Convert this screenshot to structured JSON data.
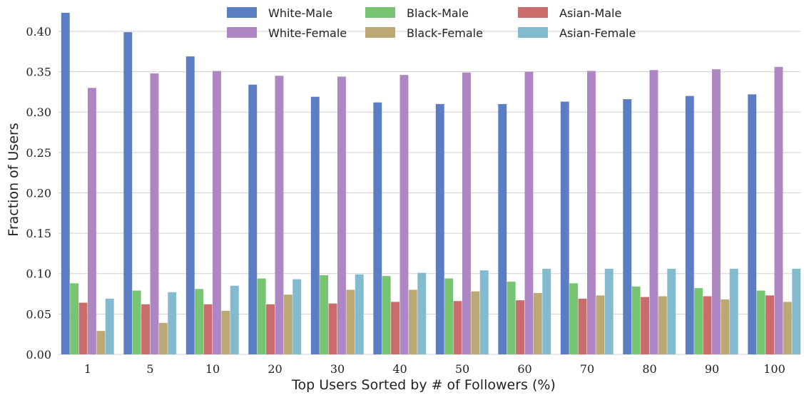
{
  "chart_data": {
    "type": "bar",
    "title": "",
    "xlabel": "Top Users Sorted by # of Followers (%)",
    "ylabel": "Fraction of Users",
    "ylim": [
      0,
      0.43
    ],
    "yticks": [
      "0.00",
      "0.05",
      "0.10",
      "0.15",
      "0.20",
      "0.25",
      "0.30",
      "0.35",
      "0.40"
    ],
    "grid": true,
    "legend_position": "top-center",
    "categories": [
      "1",
      "5",
      "10",
      "20",
      "30",
      "40",
      "50",
      "60",
      "70",
      "80",
      "90",
      "100"
    ],
    "series": [
      {
        "name": "White-Male",
        "color": "#5A7DC4",
        "values": [
          0.423,
          0.399,
          0.369,
          0.334,
          0.319,
          0.312,
          0.31,
          0.31,
          0.313,
          0.316,
          0.32,
          0.322
        ]
      },
      {
        "name": "Black-Male",
        "color": "#77C472",
        "values": [
          0.088,
          0.079,
          0.081,
          0.094,
          0.098,
          0.097,
          0.094,
          0.09,
          0.088,
          0.084,
          0.082,
          0.079
        ]
      },
      {
        "name": "Asian-Male",
        "color": "#CB6C6C",
        "values": [
          0.064,
          0.062,
          0.062,
          0.062,
          0.063,
          0.065,
          0.066,
          0.067,
          0.069,
          0.071,
          0.072,
          0.073
        ]
      },
      {
        "name": "White-Female",
        "color": "#AF86C4",
        "values": [
          0.33,
          0.348,
          0.351,
          0.345,
          0.344,
          0.346,
          0.349,
          0.35,
          0.351,
          0.352,
          0.353,
          0.356
        ]
      },
      {
        "name": "Black-Female",
        "color": "#BCA874",
        "values": [
          0.029,
          0.039,
          0.054,
          0.074,
          0.08,
          0.08,
          0.078,
          0.076,
          0.073,
          0.072,
          0.068,
          0.065
        ]
      },
      {
        "name": "Asian-Female",
        "color": "#82BACF",
        "values": [
          0.069,
          0.077,
          0.085,
          0.093,
          0.099,
          0.101,
          0.104,
          0.106,
          0.106,
          0.106,
          0.106,
          0.106
        ]
      }
    ]
  }
}
